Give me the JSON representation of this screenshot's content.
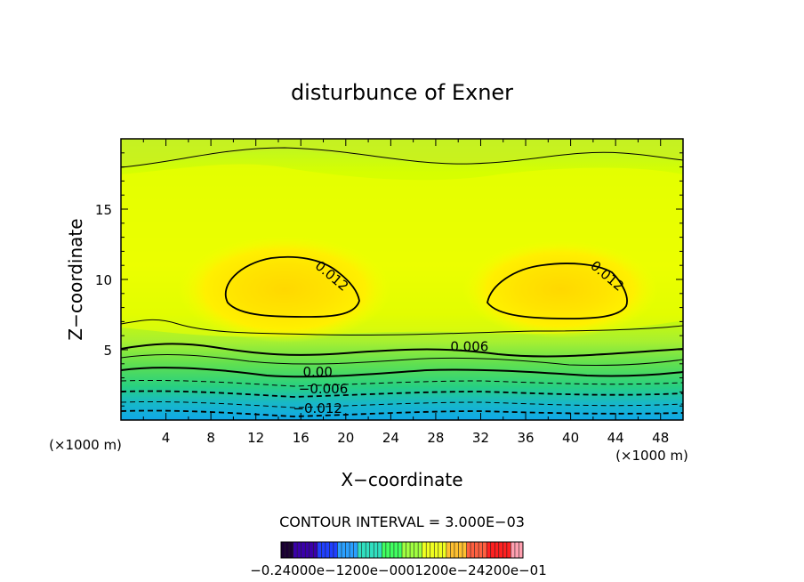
{
  "chart_data": {
    "type": "heatmap",
    "title": "disturbunce of Exner",
    "xlabel": "X−coordinate",
    "ylabel": "Z−coordinate",
    "x_unit": "(×1000 m)",
    "x_unit_right": "(×1000 m)",
    "xlim": [
      0,
      50
    ],
    "ylim": [
      0,
      20
    ],
    "x_ticks": [
      4,
      8,
      12,
      16,
      20,
      24,
      28,
      32,
      36,
      40,
      44,
      48
    ],
    "y_ticks": [
      5,
      10,
      15
    ],
    "contour_labels": [
      {
        "text": "0.012",
        "x": 18.5,
        "y": 10.0
      },
      {
        "text": "0.012",
        "x": 43.0,
        "y": 10.0
      },
      {
        "text": "0.006",
        "x": 31.0,
        "y": 4.9
      },
      {
        "text": "0.00",
        "x": 17.5,
        "y": 3.1
      },
      {
        "text": "−0.006",
        "x": 18.0,
        "y": 1.9
      },
      {
        "text": "−0.012",
        "x": 17.5,
        "y": 0.5
      }
    ],
    "contour_interval_text": "CONTOUR INTERVAL = 3.000E−03",
    "colorbar_labels": "−0.24000e−1200e−0001200e−24200e−01",
    "colorbar_colors": [
      "#1a0033",
      "#3a00aa",
      "#2040ff",
      "#2aa0ff",
      "#30e0c0",
      "#40ff60",
      "#a0ff40",
      "#f0ff20",
      "#ffc030",
      "#ff6040",
      "#ff2020",
      "#ffa0b0"
    ]
  }
}
